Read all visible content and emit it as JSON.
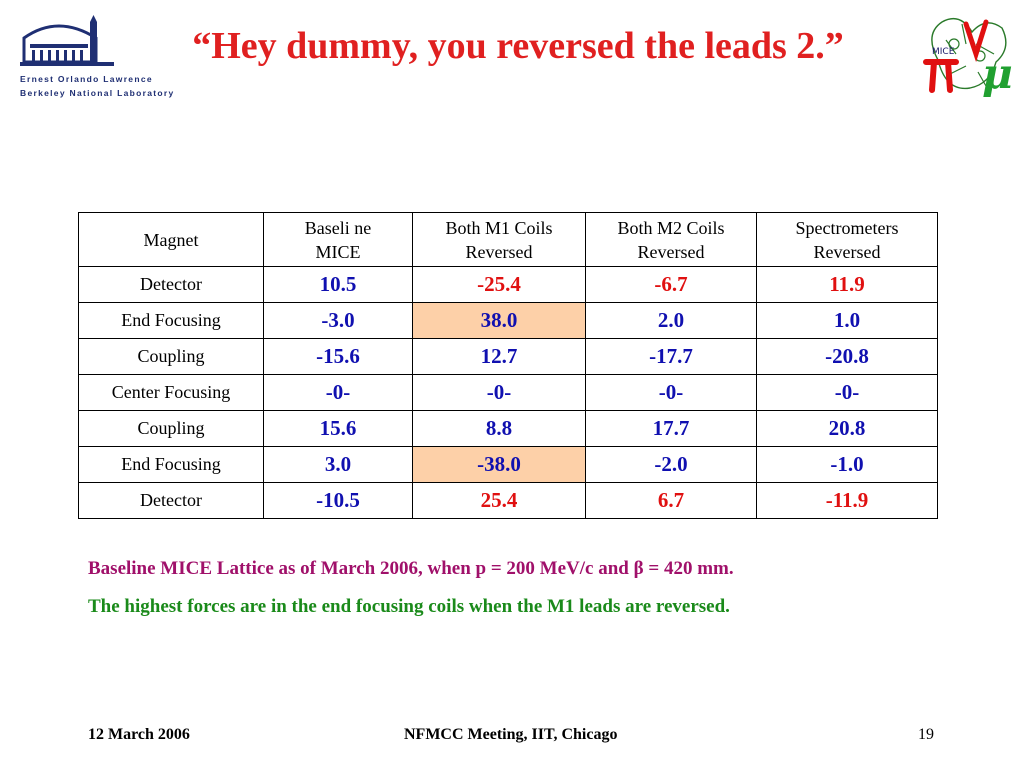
{
  "header": {
    "title": "“Hey dummy, you reversed the leads 2.”",
    "lab_logo": {
      "line1": "Ernest Orlando Lawrence",
      "line2": "Berkeley National Laboratory"
    },
    "mice_logo": "mice-logo-icon"
  },
  "table": {
    "columns": [
      "Magnet",
      "Baseli ne MICE",
      "Both M1 Coils Reversed",
      "Both M2 Coils Reversed",
      "Spectrometers Reversed"
    ],
    "rows": [
      {
        "magnet": "Detector",
        "cells": [
          "10.5",
          "-25.4",
          "-6.7",
          "11.9"
        ]
      },
      {
        "magnet": "End Focusing",
        "cells": [
          "-3.0",
          "38.0",
          "2.0",
          "1.0"
        ]
      },
      {
        "magnet": "Coupling",
        "cells": [
          "-15.6",
          "12.7",
          "-17.7",
          "-20.8"
        ]
      },
      {
        "magnet": "Center Focusing",
        "cells": [
          "-0-",
          "-0-",
          "-0-",
          "-0-"
        ]
      },
      {
        "magnet": "Coupling",
        "cells": [
          "15.6",
          "8.8",
          "17.7",
          "20.8"
        ]
      },
      {
        "magnet": "End Focusing",
        "cells": [
          "3.0",
          "-38.0",
          "-2.0",
          "-1.0"
        ]
      },
      {
        "magnet": "Detector",
        "cells": [
          "-10.5",
          "25.4",
          "6.7",
          "-11.9"
        ]
      }
    ],
    "colors": {
      "blue": "#1010b0",
      "red": "#e01010",
      "highlight": "#fdd0a8"
    }
  },
  "notes": {
    "line1": "Baseline MICE Lattice as of March 2006, when p = 200 MeV/c and β = 420 mm.",
    "line2": "The highest forces are in the end focusing coils when the M1 leads are reversed."
  },
  "footer": {
    "date": "12 March 2006",
    "meeting": "NFMCC Meeting, IIT, Chicago",
    "page": "19"
  }
}
